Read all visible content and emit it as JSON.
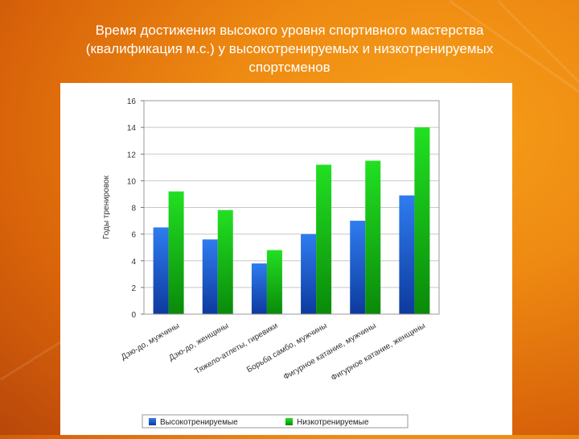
{
  "slide": {
    "title_lines": [
      "Время достижения высокого уровня спортивного мастерства",
      "(квалификация м.с.) у высокотренируемых и низкотренируемых",
      "спортсменов"
    ]
  },
  "chart_data": {
    "type": "bar",
    "title": "Время достижения высокого уровня спортивного мастерства (квалификация м.с.) у высокотренируемых и низкотренируемых спортсменов",
    "ylabel": "Годы тренировок",
    "xlabel": "",
    "ylim": [
      0,
      16
    ],
    "yticks": [
      0,
      2,
      4,
      6,
      8,
      10,
      12,
      14,
      16
    ],
    "grid": true,
    "legend_position": "bottom",
    "categories": [
      "Дзю-до, мужчины",
      "Дзю-до, женщины",
      "Тяжело-атлеты, гиревики",
      "Борьба самбо, мужчины",
      "Фигурное катание, мужчины",
      "Фигурное катание, женщины"
    ],
    "series": [
      {
        "name": "Высокотренируемые",
        "color": "#1f5fd6",
        "values": [
          6.5,
          5.6,
          3.8,
          6.0,
          7.0,
          8.9
        ]
      },
      {
        "name": "Низкотренируемые",
        "color": "#18c418",
        "values": [
          9.2,
          7.8,
          4.8,
          11.2,
          11.5,
          14.0
        ]
      }
    ]
  }
}
